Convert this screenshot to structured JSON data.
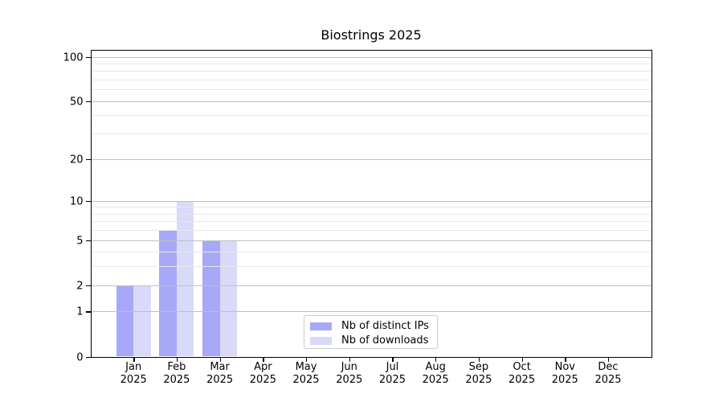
{
  "chart_data": {
    "type": "bar",
    "title": "Biostrings 2025",
    "categories": [
      "Jan 2025",
      "Feb 2025",
      "Mar 2025",
      "Apr 2025",
      "May 2025",
      "Jun 2025",
      "Jul 2025",
      "Aug 2025",
      "Sep 2025",
      "Oct 2025",
      "Nov 2025",
      "Dec 2025"
    ],
    "series": [
      {
        "name": "Nb of distinct IPs",
        "color": "#a8a8f8",
        "values": [
          2,
          6,
          5,
          0,
          0,
          0,
          0,
          0,
          0,
          0,
          0,
          0
        ]
      },
      {
        "name": "Nb of downloads",
        "color": "#d9d9fa",
        "values": [
          2,
          10,
          5,
          0,
          0,
          0,
          0,
          0,
          0,
          0,
          0,
          0
        ]
      }
    ],
    "y_axis": {
      "scale": "log1p",
      "major_ticks": [
        0,
        1,
        2,
        5,
        10,
        20,
        50,
        100
      ],
      "minor_gridlines": [
        3,
        4,
        6,
        7,
        8,
        9,
        30,
        40,
        60,
        70,
        80,
        90
      ],
      "ylim": [
        0,
        112
      ]
    },
    "legend": {
      "position": "lower center"
    },
    "grid": true,
    "colors": {
      "major_grid": "#c0c0c0",
      "minor_grid": "#e7e7e7",
      "axis": "#000000",
      "background": "#ffffff"
    }
  }
}
